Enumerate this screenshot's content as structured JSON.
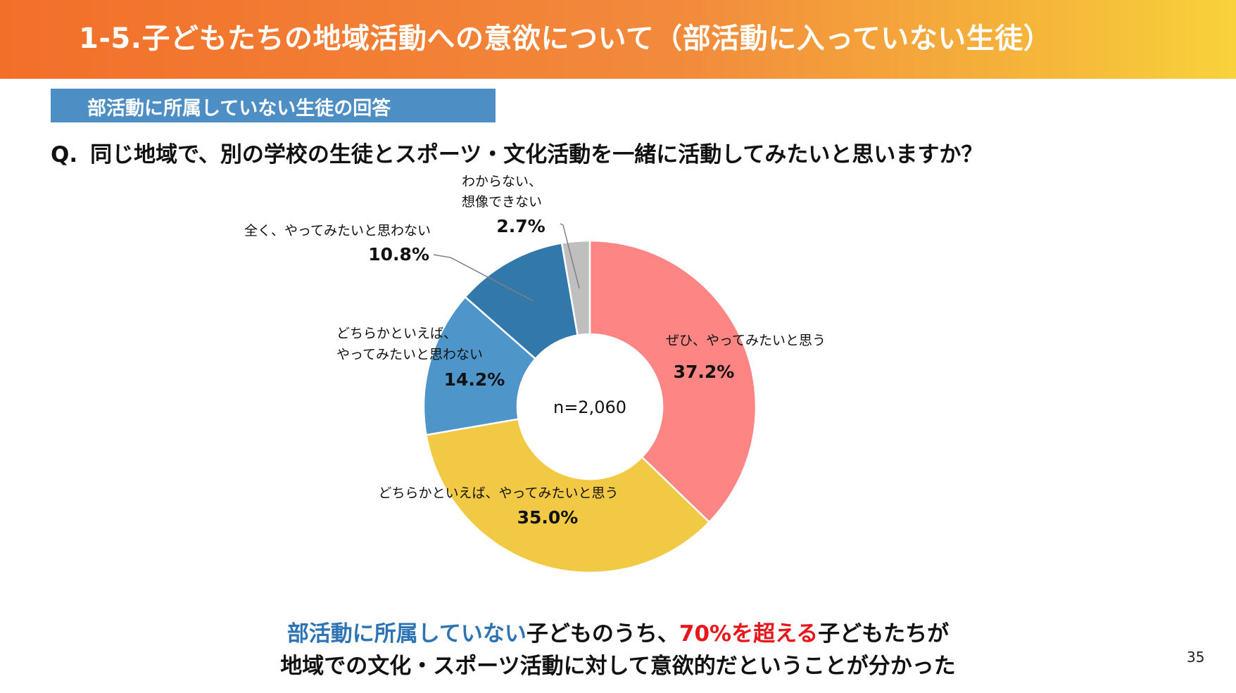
{
  "header": {
    "title": "1-5.子どもたちの地域活動への意欲について（部活動に入っていない生徒）"
  },
  "subhead": {
    "label": "部活動に所属していない生徒の回答"
  },
  "question": {
    "prefix": "Q.",
    "text": "同じ地域で、別の学校の生徒とスポーツ・文化活動を一緒に活動してみたいと思いますか？"
  },
  "chart_data": {
    "type": "pie",
    "donut": true,
    "center_label": "n=2,060",
    "slices": [
      {
        "label": "ぜひ、やってみたいと思う",
        "value": 37.2,
        "pct_label": "37.2%",
        "color": "#fd8583"
      },
      {
        "label": "どちらかといえば、やってみたいと思う",
        "value": 35.0,
        "pct_label": "35.0%",
        "color": "#f1c944"
      },
      {
        "label": "どちらかといえば、\nやってみたいと思わない",
        "value": 14.2,
        "pct_label": "14.2%",
        "color": "#4e96ca"
      },
      {
        "label": "全く、やってみたいと思わない",
        "value": 10.8,
        "pct_label": "10.8%",
        "color": "#3378aa"
      },
      {
        "label": "わからない、\n想像できない",
        "value": 2.7,
        "pct_label": "2.7%",
        "color": "#bfbfbf"
      }
    ]
  },
  "conclusion": {
    "line1_blue": "部活動に所属していない",
    "line1_mid": "子どものうち、",
    "line1_red": "70%を超える",
    "line1_end": "子どもたちが",
    "line2": "地域での文化・スポーツ活動に対して意欲的だということが分かった"
  },
  "page_number": "35"
}
